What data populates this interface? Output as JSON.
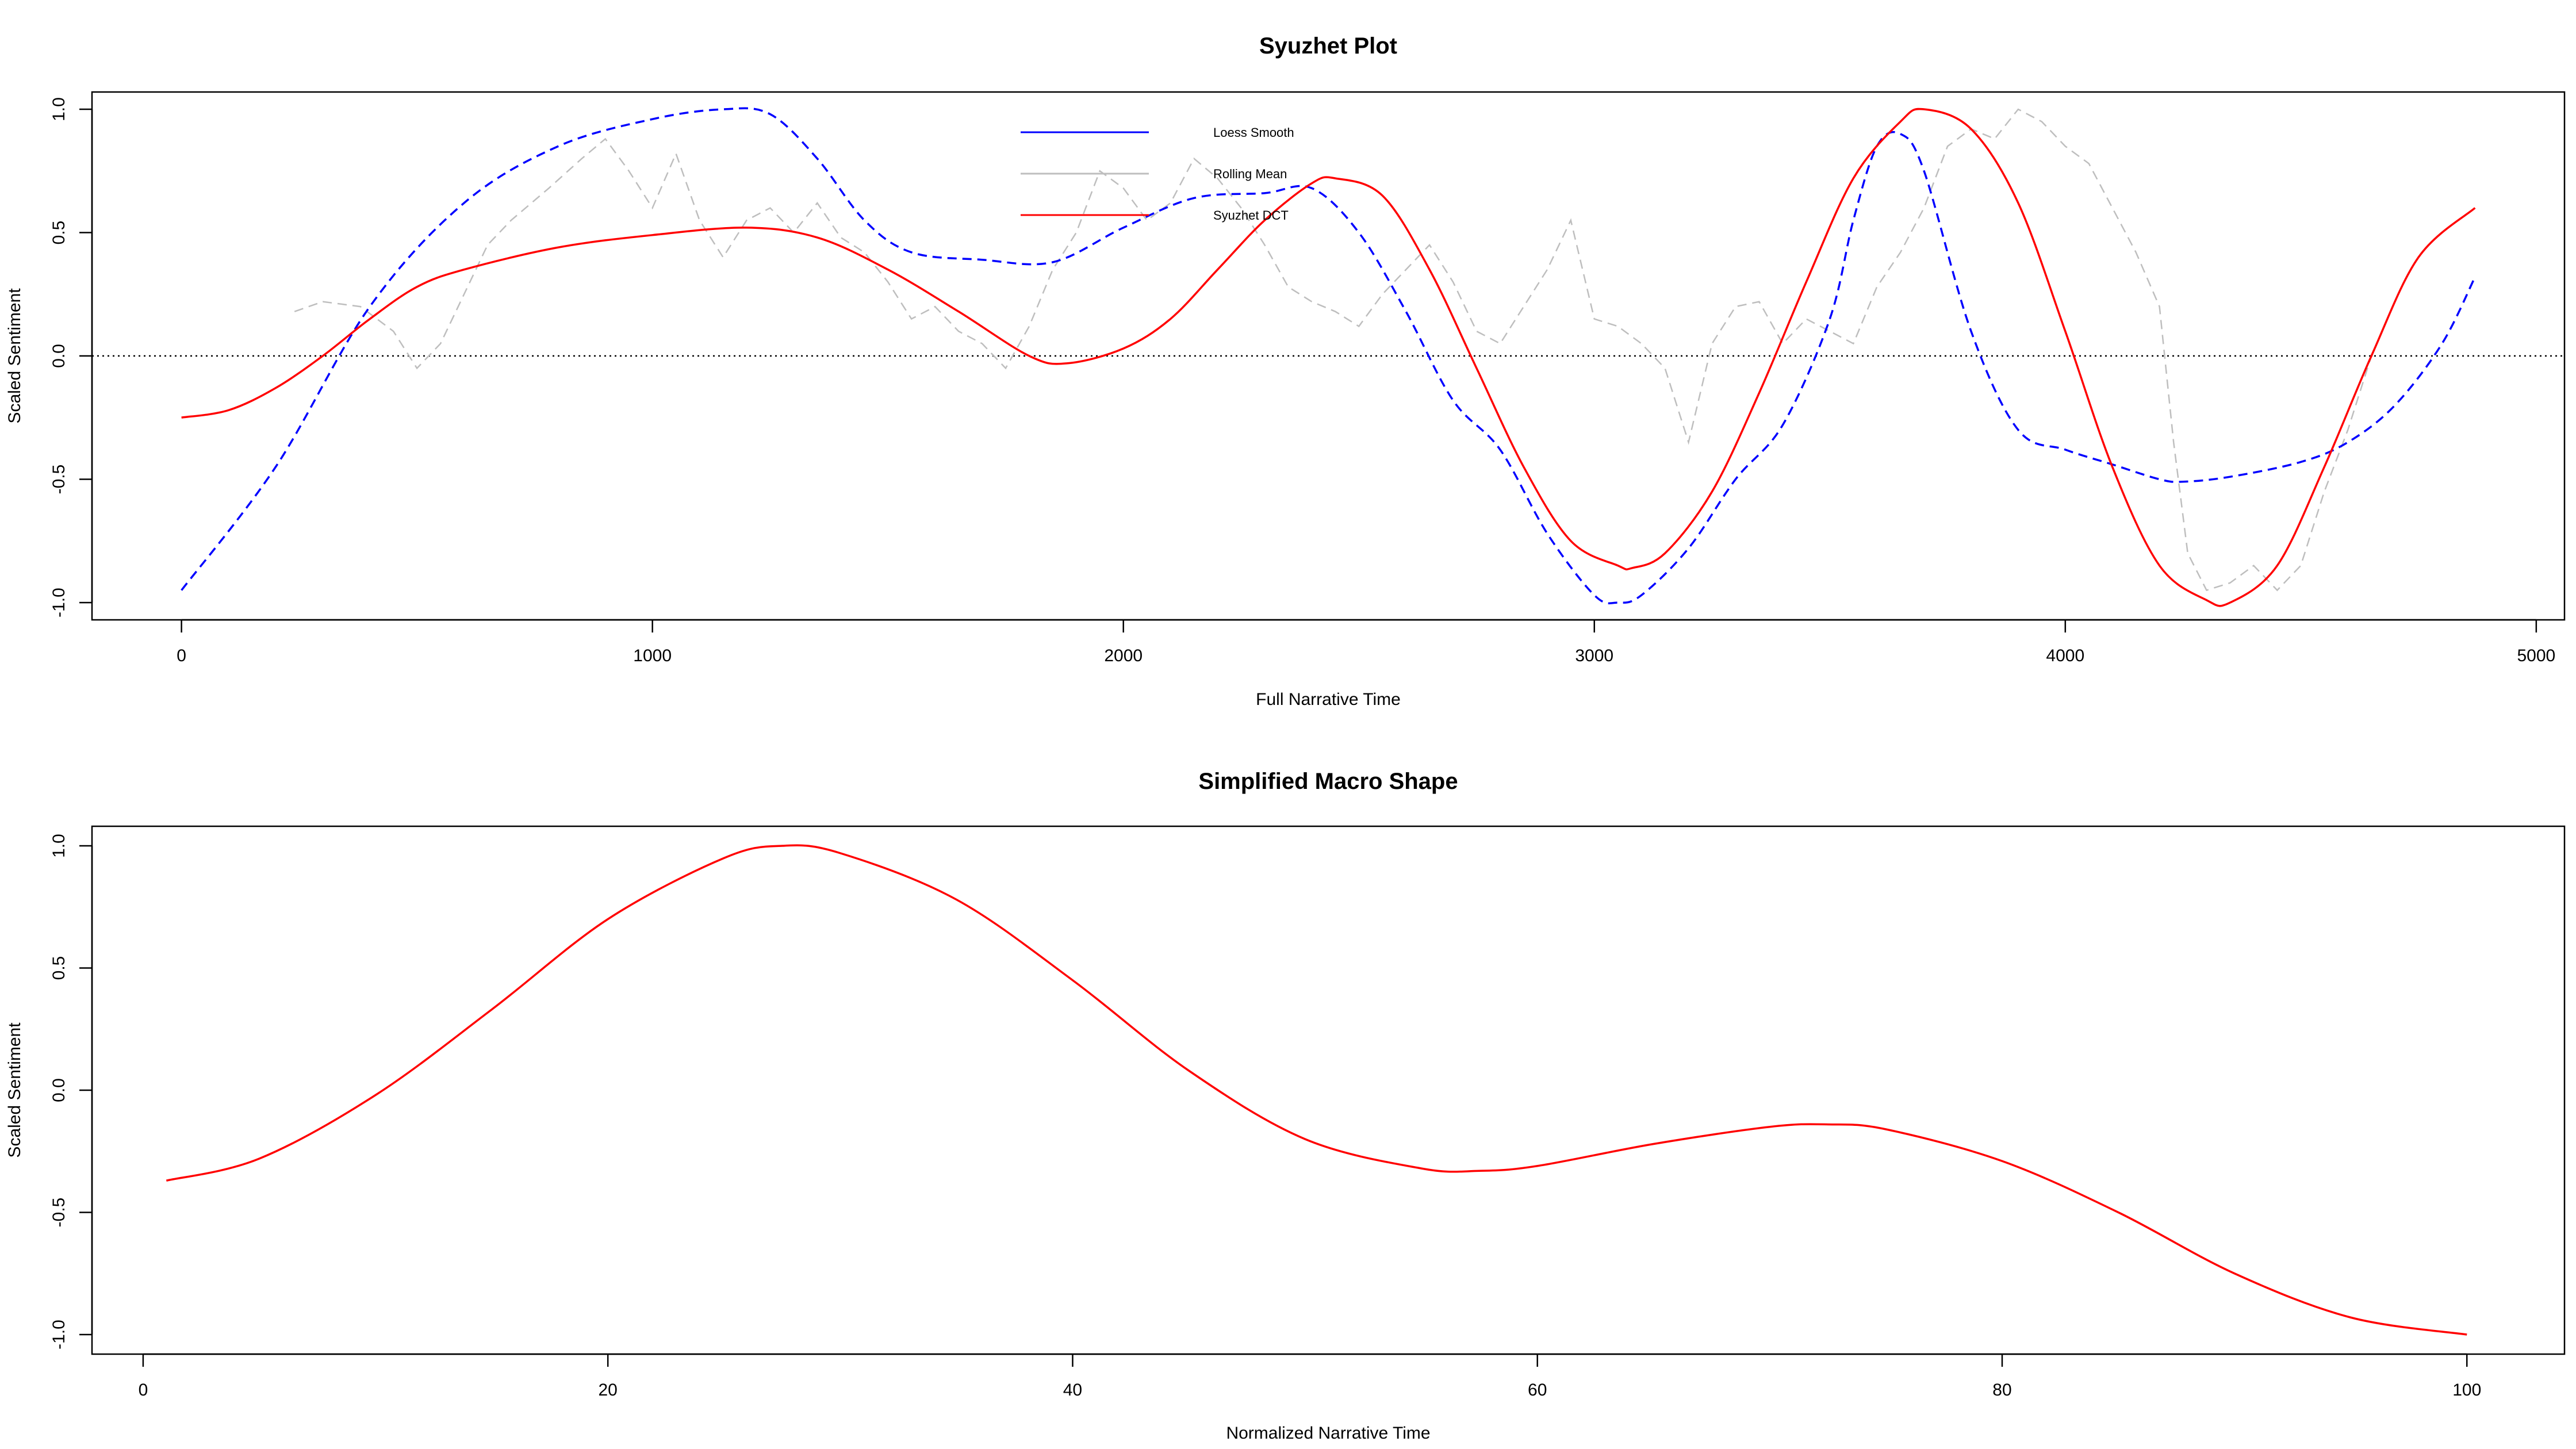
{
  "chart_data": [
    {
      "type": "line",
      "title": "Syuzhet Plot",
      "xlabel": "Full Narrative Time",
      "ylabel": "Scaled Sentiment",
      "xlim": [
        -190,
        5060
      ],
      "ylim": [
        -1.07,
        1.07
      ],
      "xticks": [
        0,
        1000,
        2000,
        3000,
        4000,
        5000
      ],
      "xtick_labels": [
        "0",
        "1000",
        "2000",
        "3000",
        "4000",
        "5000"
      ],
      "yticks": [
        -1.0,
        -0.5,
        0.0,
        0.5,
        1.0
      ],
      "ytick_labels": [
        "-1.0",
        "-0.5",
        "0.0",
        "0.5",
        "1.0"
      ],
      "grid": false,
      "reference_line": {
        "y": 0,
        "style": "dotted"
      },
      "legend": {
        "placement": "top-center",
        "entries": [
          {
            "label": "Loess Smooth",
            "color": "#0000ff"
          },
          {
            "label": "Rolling Mean",
            "color": "#bebebe"
          },
          {
            "label": "Syuzhet DCT",
            "color": "#ff0000"
          }
        ]
      },
      "series": [
        {
          "name": "Loess Smooth",
          "color": "#0000ff",
          "style": "dashed",
          "x": [
            0,
            200,
            400,
            600,
            800,
            1000,
            1150,
            1250,
            1350,
            1450,
            1550,
            1700,
            1850,
            2000,
            2150,
            2300,
            2400,
            2500,
            2600,
            2700,
            2800,
            2900,
            3000,
            3050,
            3100,
            3200,
            3300,
            3400,
            3500,
            3550,
            3600,
            3650,
            3700,
            3800,
            3900,
            4000,
            4100,
            4200,
            4250,
            4350,
            4500,
            4600,
            4700,
            4800,
            4870
          ],
          "values": [
            -0.95,
            -0.45,
            0.2,
            0.62,
            0.85,
            0.96,
            1.0,
            0.98,
            0.8,
            0.55,
            0.42,
            0.39,
            0.38,
            0.52,
            0.64,
            0.66,
            0.68,
            0.5,
            0.18,
            -0.18,
            -0.38,
            -0.72,
            -0.97,
            -1.0,
            -0.97,
            -0.78,
            -0.5,
            -0.28,
            0.15,
            0.55,
            0.85,
            0.9,
            0.75,
            0.1,
            -0.3,
            -0.38,
            -0.44,
            -0.5,
            -0.51,
            -0.49,
            -0.43,
            -0.35,
            -0.2,
            0.05,
            0.32
          ]
        },
        {
          "name": "Rolling Mean",
          "color": "#bebebe",
          "style": "dashed",
          "x": [
            240,
            300,
            380,
            450,
            500,
            550,
            600,
            650,
            700,
            780,
            850,
            900,
            950,
            1000,
            1050,
            1100,
            1150,
            1200,
            1250,
            1300,
            1350,
            1400,
            1450,
            1500,
            1550,
            1600,
            1650,
            1700,
            1750,
            1800,
            1850,
            1900,
            1950,
            2000,
            2050,
            2100,
            2150,
            2200,
            2250,
            2300,
            2350,
            2400,
            2450,
            2500,
            2550,
            2600,
            2650,
            2700,
            2750,
            2800,
            2850,
            2900,
            2950,
            3000,
            3050,
            3100,
            3150,
            3200,
            3250,
            3300,
            3350,
            3400,
            3450,
            3500,
            3550,
            3600,
            3650,
            3700,
            3750,
            3800,
            3850,
            3900,
            3950,
            4000,
            4050,
            4100,
            4150,
            4200,
            4230,
            4260,
            4300,
            4350,
            4400,
            4450,
            4500,
            4550,
            4600,
            4650
          ],
          "values": [
            0.18,
            0.22,
            0.2,
            0.1,
            -0.05,
            0.05,
            0.25,
            0.45,
            0.55,
            0.68,
            0.8,
            0.88,
            0.75,
            0.6,
            0.82,
            0.55,
            0.4,
            0.55,
            0.6,
            0.5,
            0.62,
            0.48,
            0.42,
            0.3,
            0.15,
            0.2,
            0.1,
            0.05,
            -0.05,
            0.12,
            0.35,
            0.5,
            0.75,
            0.68,
            0.55,
            0.62,
            0.8,
            0.72,
            0.6,
            0.45,
            0.28,
            0.22,
            0.18,
            0.12,
            0.25,
            0.35,
            0.45,
            0.3,
            0.1,
            0.05,
            0.2,
            0.35,
            0.55,
            0.15,
            0.12,
            0.05,
            -0.05,
            -0.35,
            0.05,
            0.2,
            0.22,
            0.05,
            0.15,
            0.1,
            0.05,
            0.28,
            0.42,
            0.6,
            0.85,
            0.92,
            0.88,
            1.0,
            0.95,
            0.85,
            0.78,
            0.6,
            0.42,
            0.2,
            -0.35,
            -0.8,
            -0.95,
            -0.92,
            -0.85,
            -0.95,
            -0.85,
            -0.55,
            -0.3,
            0.0
          ]
        },
        {
          "name": "Syuzhet DCT",
          "color": "#ff0000",
          "style": "solid",
          "x": [
            0,
            100,
            200,
            300,
            400,
            500,
            600,
            800,
            1000,
            1200,
            1350,
            1500,
            1650,
            1800,
            1880,
            2000,
            2100,
            2200,
            2300,
            2400,
            2450,
            2550,
            2650,
            2750,
            2850,
            2950,
            3050,
            3080,
            3150,
            3250,
            3350,
            3450,
            3550,
            3650,
            3700,
            3800,
            3900,
            4000,
            4100,
            4200,
            4300,
            4350,
            4450,
            4550,
            4650,
            4750,
            4870
          ],
          "values": [
            -0.25,
            -0.22,
            -0.13,
            0.0,
            0.15,
            0.28,
            0.35,
            0.44,
            0.49,
            0.52,
            0.48,
            0.35,
            0.18,
            0.0,
            -0.03,
            0.03,
            0.15,
            0.35,
            0.55,
            0.7,
            0.72,
            0.65,
            0.35,
            -0.05,
            -0.45,
            -0.75,
            -0.85,
            -0.86,
            -0.8,
            -0.55,
            -0.15,
            0.3,
            0.72,
            0.95,
            1.0,
            0.92,
            0.62,
            0.1,
            -0.45,
            -0.85,
            -0.99,
            -1.0,
            -0.85,
            -0.45,
            0.0,
            0.4,
            0.6
          ]
        }
      ]
    },
    {
      "type": "line",
      "title": "Simplified Macro Shape",
      "xlabel": "Normalized Narrative Time",
      "ylabel": "Scaled Sentiment",
      "xlim": [
        -2.2,
        104.2
      ],
      "ylim": [
        -1.08,
        1.08
      ],
      "xticks": [
        0,
        20,
        40,
        60,
        80,
        100
      ],
      "xtick_labels": [
        "0",
        "20",
        "40",
        "60",
        "80",
        "100"
      ],
      "yticks": [
        -1.0,
        -0.5,
        0.0,
        0.5,
        1.0
      ],
      "ytick_labels": [
        "-1.0",
        "-0.5",
        "0.0",
        "0.5",
        "1.0"
      ],
      "grid": false,
      "series": [
        {
          "color": "#ff0000",
          "style": "solid",
          "x": [
            1,
            5,
            10,
            15,
            20,
            25,
            27.5,
            30,
            35,
            40,
            45,
            50,
            55,
            57.5,
            60,
            65,
            70,
            72.5,
            75,
            80,
            85,
            90,
            95,
            100
          ],
          "values": [
            -0.37,
            -0.28,
            -0.02,
            0.33,
            0.7,
            0.95,
            1.0,
            0.97,
            0.78,
            0.45,
            0.08,
            -0.2,
            -0.32,
            -0.33,
            -0.31,
            -0.22,
            -0.15,
            -0.14,
            -0.16,
            -0.29,
            -0.5,
            -0.75,
            -0.93,
            -1.0
          ]
        }
      ]
    }
  ]
}
